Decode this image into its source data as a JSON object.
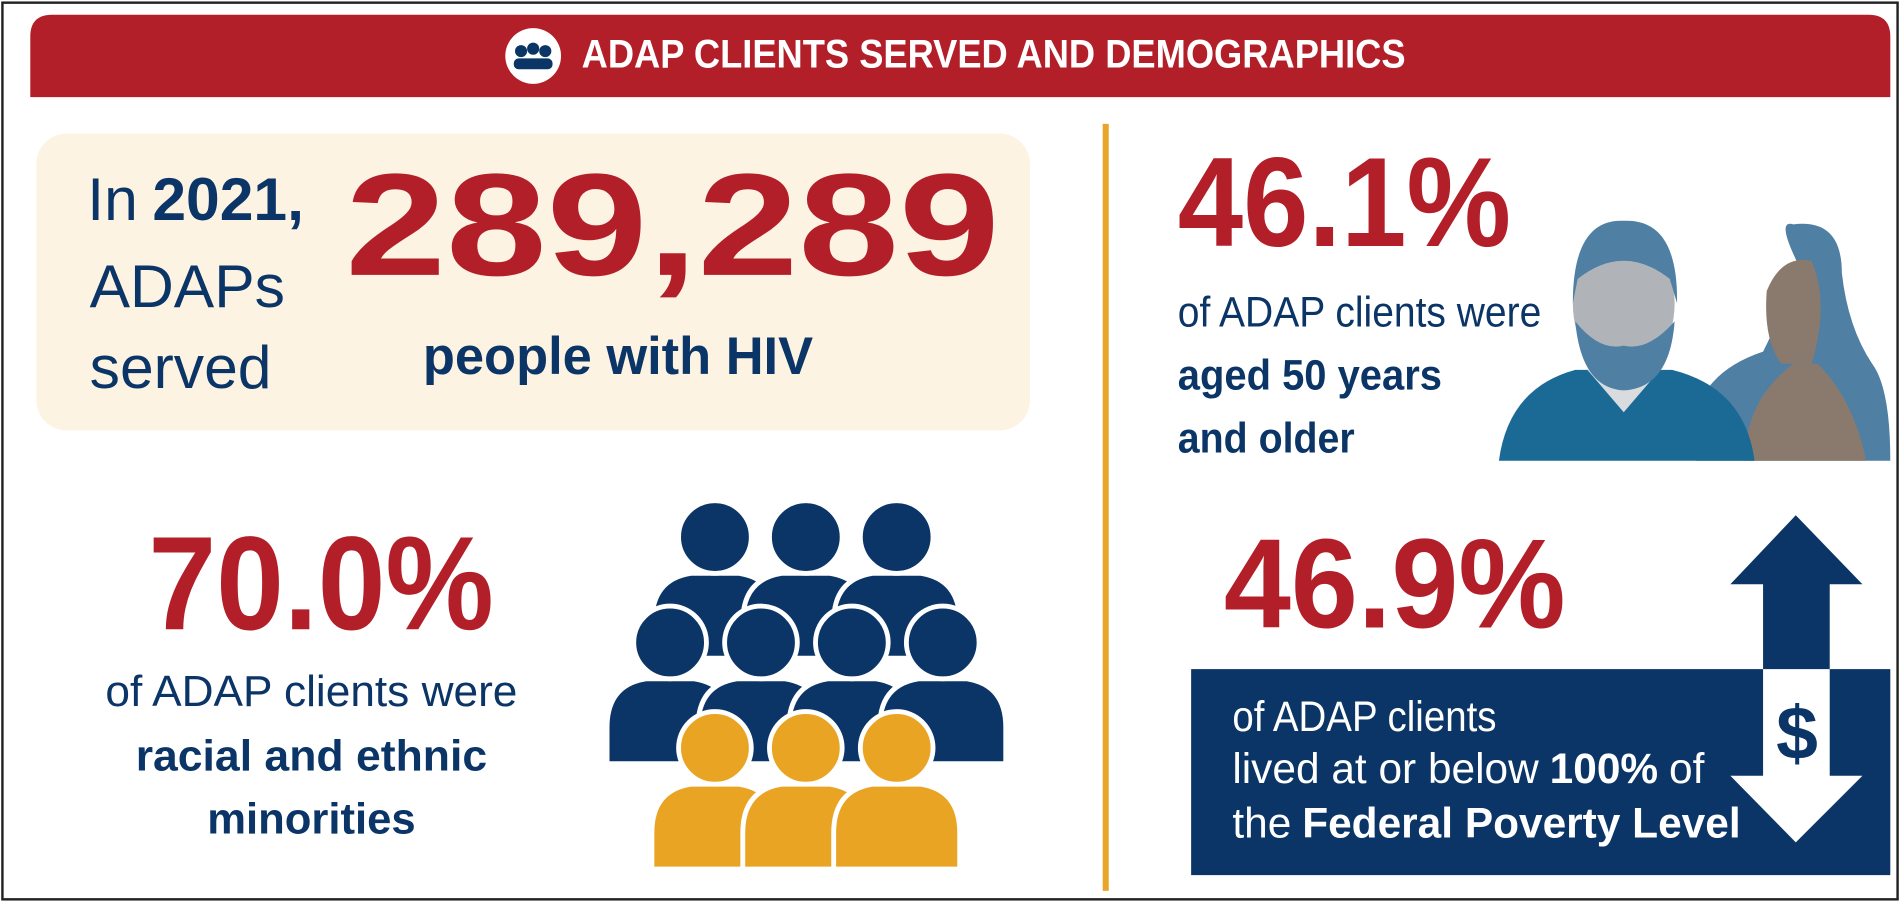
{
  "header": {
    "title": "ADAP CLIENTS SERVED AND DEMOGRAPHICS"
  },
  "served": {
    "prefix": "In",
    "year": "2021,",
    "line2": "ADAPs",
    "line3": "served",
    "count": "289,289",
    "caption": "people with HIV"
  },
  "age": {
    "percent": "46.1%",
    "line1": "of ADAP clients were",
    "line2": "aged 50 years",
    "line3": "and older"
  },
  "minorities": {
    "percent": "70.0%",
    "line1": "of ADAP clients were",
    "line2": "racial and ethnic",
    "line3": "minorities"
  },
  "poverty": {
    "percent": "46.9%",
    "line1": "of ADAP clients",
    "line2a": "lived at or below",
    "line2b": "100%",
    "line2c": "of",
    "line3a": "the",
    "line3b": "Federal Poverty Level",
    "symbol": "$"
  }
}
